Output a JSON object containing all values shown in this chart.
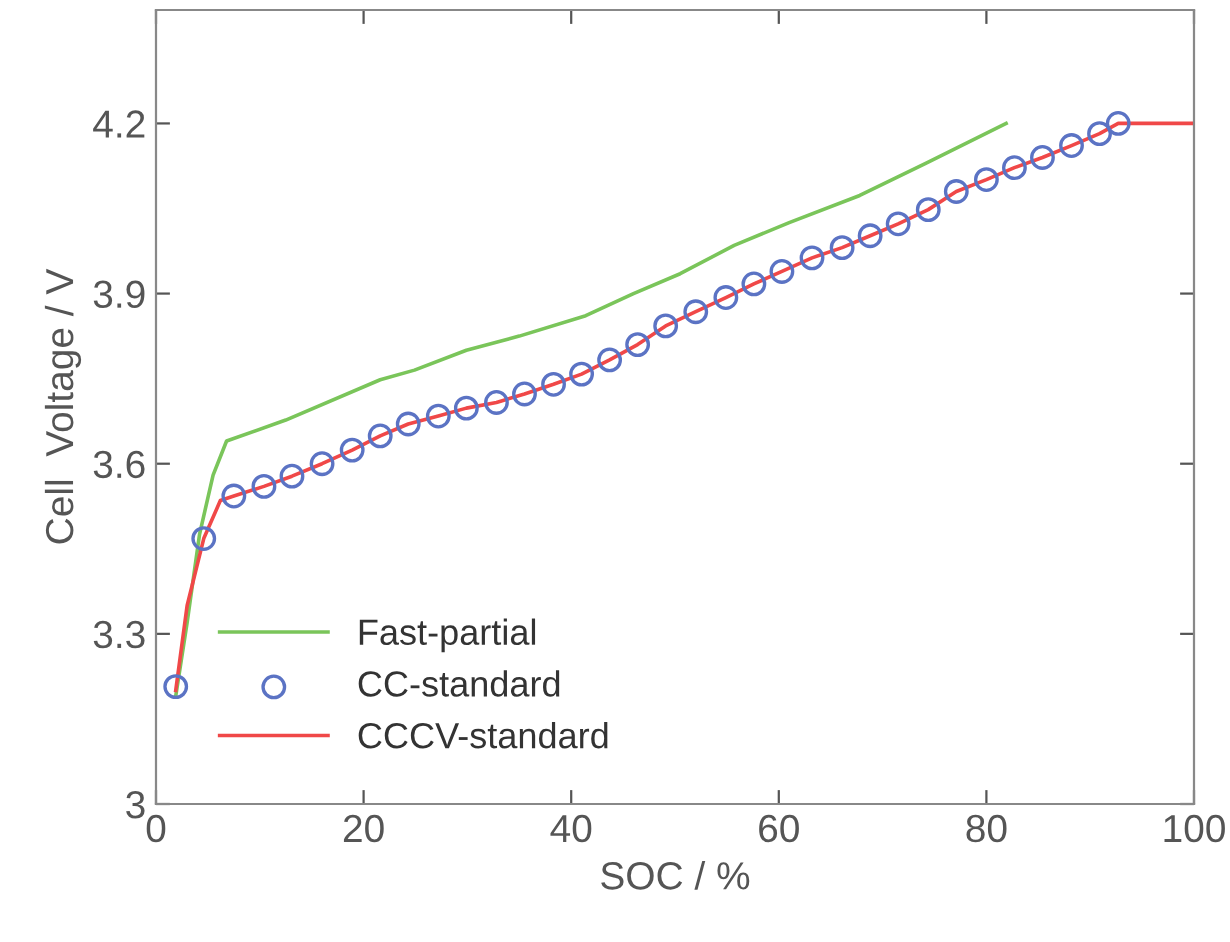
{
  "chart_data": {
    "type": "line",
    "xlabel": "SOC / %",
    "ylabel": "Cell  Voltage / V",
    "xlim": [
      0,
      100
    ],
    "ylim": [
      3,
      4.4
    ],
    "xticks": [
      0,
      20,
      40,
      60,
      80,
      100
    ],
    "yticks": [
      3,
      3.3,
      3.6,
      3.9,
      4.2
    ],
    "grid": false,
    "legend": "bottom left",
    "series": [
      {
        "name": "Fast-partial",
        "color": "#7ac55a",
        "marker": "none",
        "x": [
          1.9,
          3,
          4.2,
          5.5,
          6.8,
          12.5,
          21.6,
          24.9,
          29.9,
          35,
          41.4,
          46,
          50.5,
          55.7,
          61,
          67.8,
          74.2,
          81.9
        ],
        "values": [
          3.19,
          3.32,
          3.476,
          3.58,
          3.64,
          3.677,
          3.748,
          3.765,
          3.8,
          3.825,
          3.861,
          3.9,
          3.935,
          3.985,
          4.025,
          4.073,
          4.13,
          4.2
        ]
      },
      {
        "name": "CC-standard",
        "type": "scatter",
        "color": "#5b73c4",
        "marker": "circle",
        "x": [
          1.9,
          4.6,
          7.5,
          10.4,
          13.1,
          16.0,
          18.9,
          21.6,
          24.3,
          27.2,
          29.9,
          32.8,
          35.5,
          38.3,
          41.0,
          43.7,
          46.4,
          49.1,
          52.0,
          54.9,
          57.6,
          60.3,
          63.2,
          66.1,
          68.8,
          71.5,
          74.4,
          77.1,
          80.0,
          82.7,
          85.4,
          88.2,
          90.9,
          92.7
        ],
        "values": [
          3.207,
          3.468,
          3.543,
          3.56,
          3.578,
          3.6,
          3.624,
          3.649,
          3.67,
          3.684,
          3.698,
          3.708,
          3.723,
          3.74,
          3.758,
          3.783,
          3.81,
          3.843,
          3.868,
          3.893,
          3.917,
          3.939,
          3.963,
          3.981,
          4.002,
          4.023,
          4.048,
          4.08,
          4.101,
          4.122,
          4.14,
          4.161,
          4.182,
          4.2
        ]
      },
      {
        "name": "CCCV-standard",
        "color": "#f04848",
        "marker": "none",
        "x": [
          1.9,
          3,
          4.6,
          6.2,
          7.5,
          10.4,
          13.1,
          16.0,
          18.9,
          21.6,
          24.3,
          27.2,
          29.9,
          32.8,
          35.5,
          38.3,
          41.0,
          43.7,
          46.4,
          49.1,
          52.0,
          54.9,
          57.6,
          60.3,
          63.2,
          66.1,
          68.8,
          71.5,
          74.4,
          77.1,
          80.0,
          82.7,
          85.4,
          88.2,
          90.9,
          92.7,
          100
        ],
        "values": [
          3.2,
          3.35,
          3.468,
          3.535,
          3.543,
          3.56,
          3.578,
          3.6,
          3.624,
          3.649,
          3.67,
          3.684,
          3.698,
          3.708,
          3.723,
          3.74,
          3.758,
          3.783,
          3.81,
          3.843,
          3.868,
          3.893,
          3.917,
          3.939,
          3.963,
          3.981,
          4.002,
          4.023,
          4.048,
          4.08,
          4.101,
          4.122,
          4.14,
          4.161,
          4.182,
          4.2,
          4.2
        ]
      }
    ]
  }
}
